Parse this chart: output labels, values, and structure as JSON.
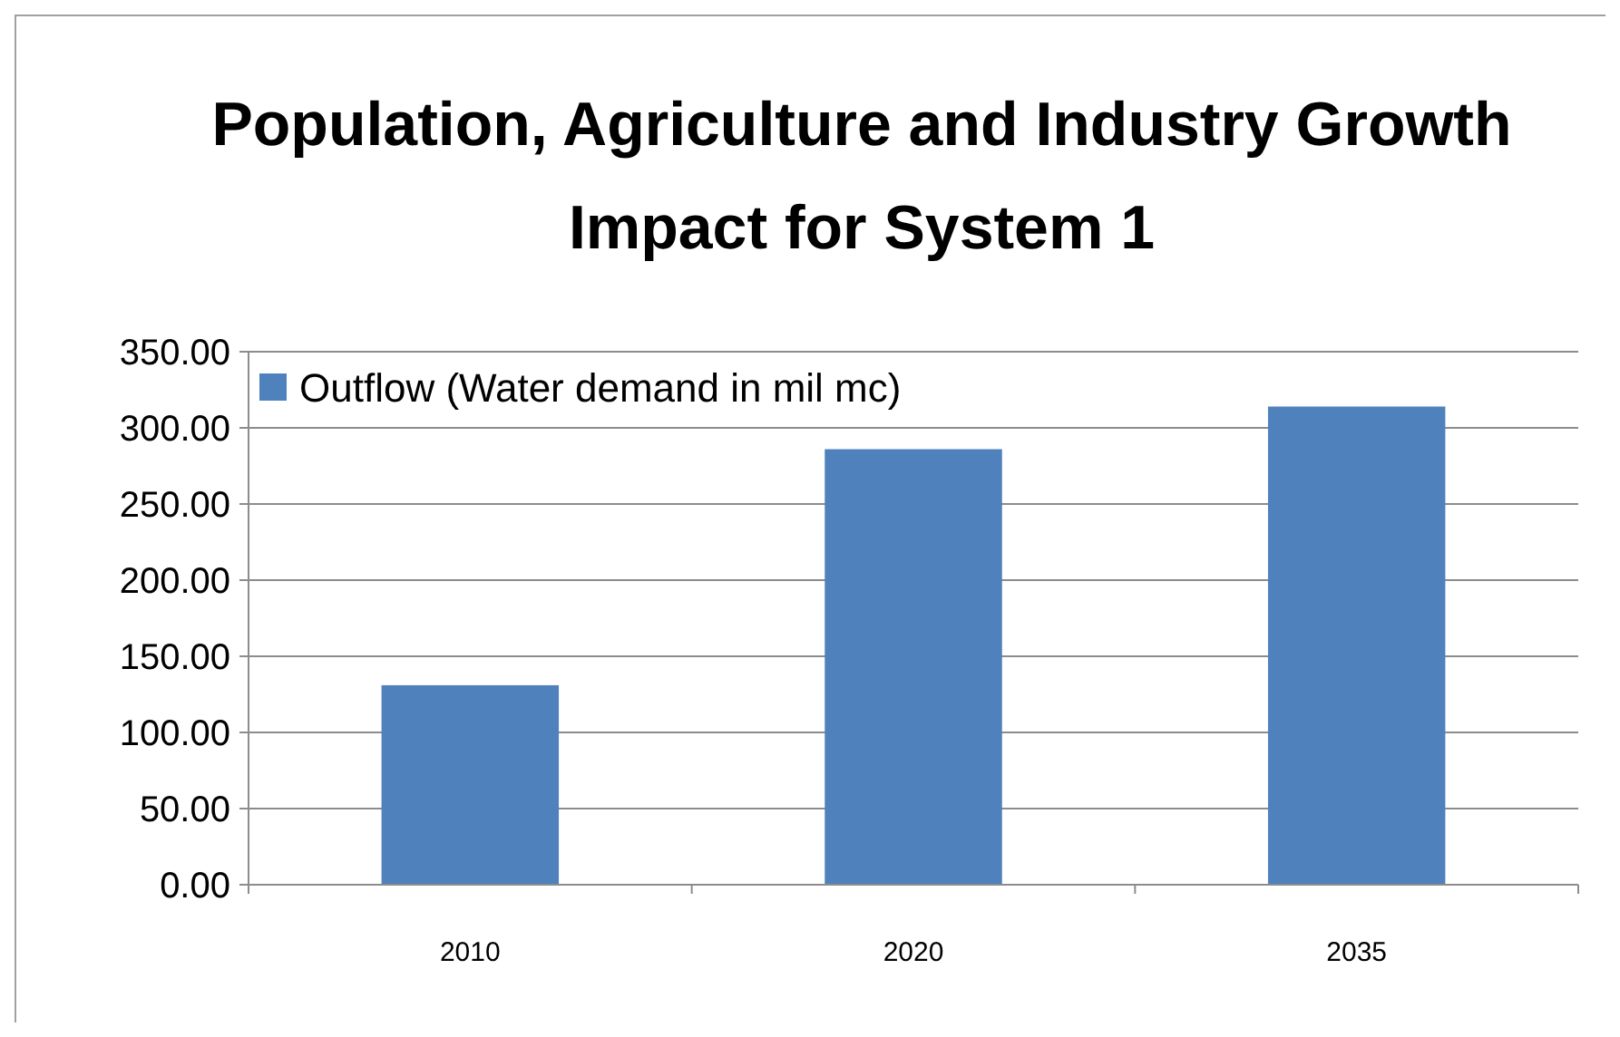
{
  "chart_data": {
    "type": "bar",
    "title": "Population, Agriculture and Industry Growth Impact for System 1",
    "categories": [
      "2010",
      "2020",
      "2035"
    ],
    "series": [
      {
        "name": "Outflow (Water demand in mil mc)",
        "color": "#4f81bd",
        "values": [
          131,
          286,
          314
        ]
      }
    ],
    "ylim": [
      0,
      350
    ],
    "yticks": [
      {
        "value": 0,
        "label": "0.00"
      },
      {
        "value": 50,
        "label": "50.00"
      },
      {
        "value": 100,
        "label": "100.00"
      },
      {
        "value": 150,
        "label": "150.00"
      },
      {
        "value": 200,
        "label": "200.00"
      },
      {
        "value": 250,
        "label": "250.00"
      },
      {
        "value": 300,
        "label": "300.00"
      },
      {
        "value": 350,
        "label": "350.00"
      }
    ],
    "grid": "y",
    "legend": "top left"
  }
}
